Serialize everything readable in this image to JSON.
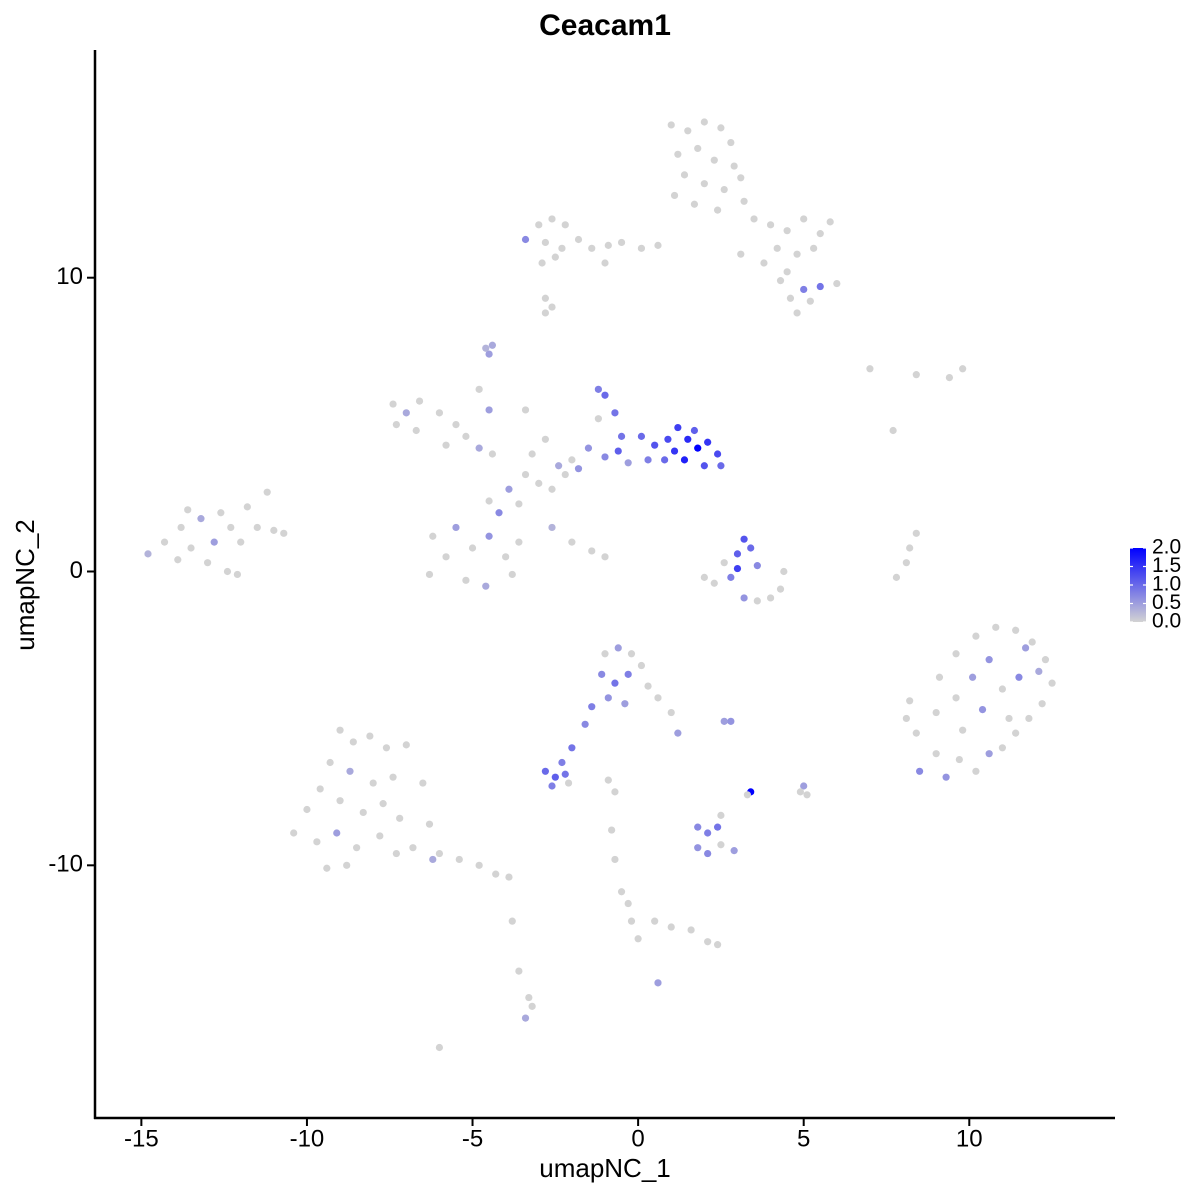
{
  "chart_data": {
    "type": "scatter",
    "title": "Ceacam1",
    "x_label": "umapNC_1",
    "y_label": "umapNC_2",
    "xlim": [
      -16.4,
      14.4
    ],
    "ylim": [
      -18.6,
      17.75
    ],
    "xticks": [
      -15,
      -10,
      -5,
      0,
      5,
      10
    ],
    "yticks": [
      -10,
      0,
      10
    ],
    "color_scale": {
      "low": "#d3d3d3",
      "high": "#0000ff",
      "lim": [
        0,
        2
      ],
      "ticks": [
        {
          "value": 0,
          "label": "0.0"
        },
        {
          "value": 0.5,
          "label": "0.5"
        },
        {
          "value": 1,
          "label": "1.0"
        },
        {
          "value": 1.5,
          "label": "1.5"
        },
        {
          "value": 2,
          "label": "2.0"
        }
      ]
    },
    "x": [
      1.0,
      1.5,
      2.0,
      2.5,
      2.8,
      1.2,
      1.8,
      2.3,
      2.9,
      1.4,
      2.0,
      2.6,
      3.1,
      1.1,
      1.7,
      2.4,
      3.2,
      3.5,
      4.0,
      4.5,
      5.0,
      5.5,
      5.8,
      4.2,
      4.8,
      5.3,
      3.8,
      4.5,
      3.1,
      4.3,
      4.6,
      5.0,
      5.5,
      6.0,
      5.2,
      4.8,
      -3.0,
      -2.6,
      -2.2,
      -2.8,
      -2.3,
      -1.8,
      -1.4,
      -0.9,
      -0.5,
      0.1,
      0.6,
      -2.9,
      -2.5,
      -3.4,
      -1.0,
      -2.8,
      -2.6,
      -2.8,
      7.0,
      8.4,
      9.4,
      9.8,
      7.7,
      8.4,
      8.1,
      7.8,
      8.2,
      -4.5,
      -4.4,
      -4.6,
      -14.8,
      -14.3,
      -13.8,
      -13.5,
      -13.2,
      -12.8,
      -12.6,
      -12.3,
      -12.0,
      -11.8,
      -11.5,
      -11.2,
      -11.0,
      -10.7,
      -13.0,
      -12.4,
      -13.9,
      -12.1,
      -13.6,
      -7.4,
      -7.0,
      -6.6,
      -6.0,
      -5.5,
      -5.2,
      -7.3,
      -6.7,
      -4.8,
      -4.4,
      -5.8,
      -6.2,
      -5.8,
      -5.5,
      -5.0,
      -4.5,
      -4.0,
      -3.6,
      -5.2,
      -4.6,
      -3.8,
      -6.3,
      -4.2,
      -4.5,
      -3.9,
      -3.6,
      -3.4,
      -3.0,
      -2.6,
      -2.2,
      -3.2,
      -2.8,
      -2.4,
      -4.5,
      -4.8,
      -3.4,
      -2.0,
      -2.6,
      -2.0,
      -1.4,
      -1.0,
      -1.2,
      -1.0,
      -0.7,
      -1.2,
      -0.5,
      -1.5,
      -1.0,
      -0.3,
      -1.8,
      -0.6,
      0.1,
      0.5,
      0.9,
      1.2,
      1.5,
      1.8,
      2.1,
      2.4,
      1.4,
      2.0,
      1.1,
      2.5,
      1.7,
      0.3,
      0.8,
      2.6,
      3.0,
      3.2,
      3.4,
      3.0,
      2.8,
      3.6,
      4.4,
      3.2,
      3.6,
      4.0,
      2.3,
      2.0,
      4.3,
      8.2,
      8.1,
      8.4,
      8.5,
      9.0,
      9.3,
      9.7,
      10.2,
      10.6,
      11.0,
      11.4,
      11.8,
      12.2,
      12.5,
      12.3,
      11.9,
      11.4,
      10.8,
      10.2,
      9.6,
      9.1,
      9.0,
      9.6,
      10.1,
      10.6,
      11.0,
      11.5,
      10.4,
      9.8,
      11.2,
      12.1,
      11.7,
      -9.0,
      -8.6,
      -8.1,
      -7.6,
      -9.3,
      -8.7,
      -8.0,
      -7.4,
      -9.6,
      -9.0,
      -8.3,
      -7.7,
      -7.2,
      -10.0,
      -10.4,
      -9.7,
      -9.1,
      -8.5,
      -7.8,
      -7.3,
      -6.8,
      -6.0,
      -5.4,
      -4.8,
      -4.3,
      -3.9,
      -8.8,
      -6.3,
      -7.0,
      -6.5,
      -6.2,
      -9.4,
      -1.0,
      -0.6,
      -0.2,
      -1.1,
      -0.7,
      -0.3,
      0.1,
      0.3,
      -0.9,
      -0.4,
      0.6,
      1.0,
      1.2,
      -1.4,
      -1.6,
      -2.0,
      -2.3,
      -2.8,
      -2.5,
      -2.2,
      -2.6,
      -2.1,
      2.8,
      2.6,
      3.4,
      3.3,
      5.0,
      5.1,
      4.9,
      -0.9,
      -0.7,
      1.8,
      2.1,
      2.4,
      1.8,
      2.1,
      2.5,
      2.9,
      2.5,
      -0.5,
      -0.3,
      -0.2,
      0.0,
      0.5,
      1.0,
      1.6,
      2.1,
      2.4,
      -3.8,
      -3.6,
      -3.3,
      -3.4,
      -3.2,
      -6.0,
      0.6,
      -0.7,
      -0.8
    ],
    "y": [
      15.2,
      15.0,
      15.3,
      15.1,
      14.6,
      14.2,
      14.4,
      14.0,
      13.8,
      13.5,
      13.2,
      13.0,
      13.4,
      12.8,
      12.5,
      12.3,
      12.6,
      12.0,
      11.8,
      11.6,
      12.0,
      11.5,
      11.9,
      11.0,
      10.8,
      11.0,
      10.5,
      10.2,
      10.8,
      9.9,
      9.3,
      9.6,
      9.7,
      9.8,
      9.2,
      8.8,
      11.8,
      12.0,
      11.8,
      11.2,
      11.0,
      11.3,
      11.0,
      11.1,
      11.2,
      11.0,
      11.1,
      10.5,
      10.7,
      11.3,
      10.5,
      8.8,
      9.0,
      9.3,
      6.9,
      6.7,
      6.6,
      6.9,
      4.8,
      1.3,
      0.3,
      -0.2,
      0.8,
      7.4,
      7.7,
      7.6,
      0.6,
      1.0,
      1.5,
      0.8,
      1.8,
      1.0,
      2.0,
      1.5,
      1.0,
      2.2,
      1.5,
      2.7,
      1.4,
      1.3,
      0.3,
      0.0,
      0.4,
      -0.1,
      2.1,
      5.7,
      5.4,
      5.8,
      5.4,
      5.0,
      4.6,
      5.0,
      4.8,
      4.2,
      4.0,
      4.3,
      1.2,
      0.5,
      1.5,
      0.8,
      1.2,
      0.5,
      1.0,
      -0.3,
      -0.5,
      -0.1,
      -0.1,
      2.0,
      2.4,
      2.8,
      2.3,
      3.3,
      3.0,
      2.8,
      3.3,
      4.0,
      4.5,
      3.6,
      5.5,
      6.2,
      5.5,
      3.8,
      1.5,
      1.0,
      0.7,
      0.5,
      6.2,
      6.0,
      5.4,
      5.2,
      4.6,
      4.2,
      3.9,
      3.7,
      3.5,
      4.1,
      4.6,
      4.3,
      4.5,
      4.9,
      4.5,
      4.2,
      4.4,
      4.0,
      3.8,
      3.6,
      4.1,
      3.6,
      4.8,
      3.8,
      3.8,
      0.3,
      0.6,
      1.1,
      0.8,
      0.1,
      -0.2,
      0.2,
      0.0,
      -0.9,
      -1.0,
      -0.9,
      -0.4,
      -0.2,
      -0.6,
      -4.4,
      -5.0,
      -5.5,
      -6.8,
      -6.2,
      -7.0,
      -6.4,
      -6.8,
      -6.2,
      -6.0,
      -5.5,
      -5.0,
      -4.5,
      -3.8,
      -3.0,
      -2.4,
      -2.0,
      -1.9,
      -2.2,
      -2.8,
      -3.6,
      -4.8,
      -4.3,
      -3.6,
      -3.0,
      -4.0,
      -3.6,
      -4.7,
      -5.4,
      -5.0,
      -3.4,
      -2.6,
      -5.4,
      -5.8,
      -5.6,
      -6.0,
      -6.5,
      -6.8,
      -7.2,
      -7.0,
      -7.4,
      -7.8,
      -8.2,
      -7.9,
      -8.4,
      -8.1,
      -8.9,
      -9.2,
      -8.9,
      -9.4,
      -9.0,
      -9.6,
      -9.4,
      -9.6,
      -9.8,
      -10.0,
      -10.3,
      -10.4,
      -10.0,
      -8.6,
      -5.9,
      -7.2,
      -9.8,
      -10.1,
      -2.8,
      -2.6,
      -2.8,
      -3.5,
      -3.8,
      -3.5,
      -3.2,
      -3.9,
      -4.3,
      -4.5,
      -4.3,
      -4.8,
      -5.5,
      -4.6,
      -5.2,
      -6.0,
      -6.5,
      -6.8,
      -7.0,
      -6.9,
      -7.3,
      -7.2,
      -5.1,
      -5.1,
      -7.5,
      -7.6,
      -7.3,
      -7.6,
      -7.5,
      -7.1,
      -7.5,
      -8.7,
      -8.9,
      -8.7,
      -9.4,
      -9.6,
      -9.3,
      -9.5,
      -8.3,
      -10.9,
      -11.3,
      -11.9,
      -12.5,
      -11.9,
      -12.1,
      -12.2,
      -12.6,
      -12.7,
      -11.9,
      -13.6,
      -14.5,
      -15.2,
      -14.8,
      -16.2,
      -14.0,
      -9.8,
      -8.8
    ],
    "expression": [
      0,
      0,
      0,
      0,
      0,
      0,
      0,
      0,
      0,
      0,
      0,
      0,
      0,
      0,
      0,
      0,
      0,
      0,
      0,
      0,
      0,
      0,
      0,
      0,
      0,
      0,
      0,
      0,
      0,
      0,
      0,
      0.8,
      0.9,
      0,
      0,
      0,
      0,
      0,
      0,
      0,
      0,
      0,
      0,
      0,
      0,
      0,
      0,
      0,
      0,
      0.7,
      0,
      0,
      0,
      0,
      0,
      0,
      0,
      0,
      0,
      0,
      0,
      0,
      0,
      0.5,
      0.4,
      0.3,
      0.3,
      0,
      0,
      0,
      0.4,
      0.5,
      0,
      0,
      0,
      0,
      0,
      0,
      0,
      0,
      0,
      0,
      0,
      0,
      0,
      0,
      0.4,
      0,
      0,
      0,
      0,
      0,
      0,
      0.4,
      0,
      0,
      0,
      0,
      0.5,
      0,
      0.6,
      0,
      0,
      0,
      0.4,
      0,
      0,
      0.7,
      0,
      0.5,
      0,
      0,
      0,
      0,
      0,
      0,
      0,
      0.4,
      0.5,
      0,
      0,
      0,
      0.3,
      0,
      0,
      0,
      0.8,
      1.0,
      0.9,
      0,
      0.9,
      0.6,
      0.7,
      0.5,
      0.6,
      1.1,
      1.0,
      1.2,
      1.3,
      1.4,
      1.6,
      2.0,
      1.5,
      1.3,
      1.7,
      1.2,
      1.5,
      1.0,
      1.1,
      0.8,
      1.0,
      0,
      1.1,
      1.2,
      1.0,
      1.4,
      0.8,
      0.7,
      0,
      0.6,
      0,
      0,
      0,
      0,
      0,
      0,
      0,
      0,
      0.7,
      0,
      0.6,
      0,
      0,
      0.5,
      0,
      0,
      0,
      0,
      0,
      0,
      0,
      0,
      0,
      0,
      0,
      0,
      0,
      0,
      0.5,
      0.6,
      0,
      0.7,
      0.6,
      0,
      0,
      0.4,
      0.5,
      0,
      0,
      0,
      0,
      0,
      0.4,
      0,
      0,
      0,
      0,
      0,
      0,
      0,
      0,
      0,
      0,
      0.5,
      0,
      0,
      0,
      0,
      0,
      0,
      0,
      0,
      0,
      0,
      0,
      0,
      0,
      0.4,
      0,
      0,
      0.5,
      0,
      0.7,
      0.9,
      0.8,
      0,
      0,
      0.6,
      0.5,
      0,
      0,
      0.5,
      0.8,
      0.7,
      0.9,
      0.8,
      1.0,
      1.1,
      0.9,
      0.8,
      0,
      0.6,
      0.5,
      2.0,
      0,
      0.5,
      0,
      0,
      0,
      0,
      0.7,
      0.8,
      0.9,
      0.6,
      0.7,
      0,
      0.5,
      0,
      0,
      0,
      0,
      0,
      0,
      0,
      0,
      0,
      0,
      0,
      0,
      0,
      0.4,
      0,
      0,
      0.5,
      0,
      0
    ]
  }
}
